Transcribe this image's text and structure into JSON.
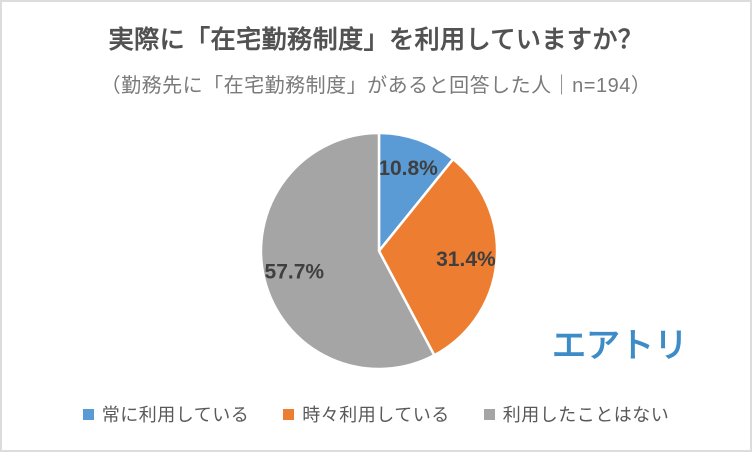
{
  "header": {
    "title": "実際に「在宅勤務制度」を利用していますか？",
    "subtitle": "（勤務先に「在宅勤務制度」があると回答した人｜n=194）"
  },
  "chart_data": {
    "type": "pie",
    "title": "実際に「在宅勤務制度」を利用していますか？",
    "subtitle": "（勤務先に「在宅勤務制度」があると回答した人｜n=194）",
    "sample_note": "n=194",
    "categories": [
      "常に利用している",
      "時々利用している",
      "利用したことはない"
    ],
    "values": [
      10.8,
      31.4,
      57.7
    ],
    "labels": [
      "10.8%",
      "31.4%",
      "57.7%"
    ],
    "colors": [
      "#5B9BD5",
      "#ED7D31",
      "#A5A5A5"
    ],
    "label_color": "#3f3f3f",
    "slice_border_color": "#ffffff",
    "start_angle_deg": 0,
    "direction": "clockwise",
    "legend_position": "bottom"
  },
  "legend": {
    "items": [
      {
        "label": "常に利用している",
        "color": "#5B9BD5"
      },
      {
        "label": "時々利用している",
        "color": "#ED7D31"
      },
      {
        "label": "利用したことはない",
        "color": "#A5A5A5"
      }
    ]
  },
  "branding": {
    "logo_text": "エアトリ",
    "logo_color": "#3e8cc7"
  }
}
